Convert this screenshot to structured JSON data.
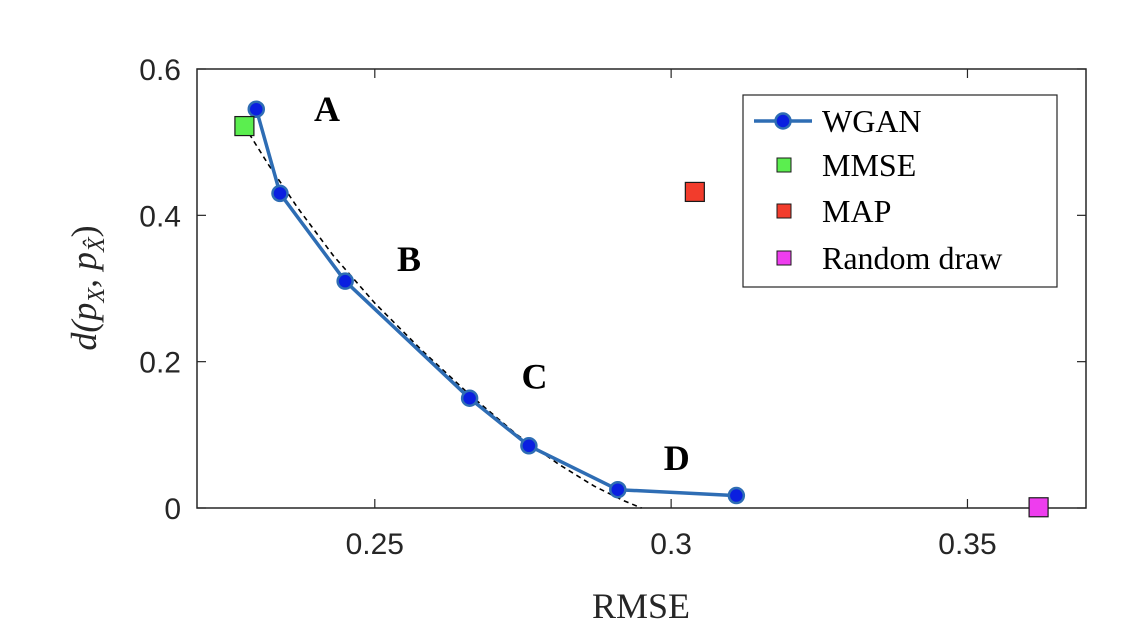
{
  "chart_data": {
    "type": "scatter",
    "xlabel": "RMSE",
    "ylabel": "d(p_X, p_X̂)",
    "xlim": [
      0.22,
      0.37
    ],
    "ylim": [
      0,
      0.6
    ],
    "xticks": [
      0.25,
      0.3,
      0.35
    ],
    "xtick_labels": [
      "0.25",
      "0.3",
      "0.35"
    ],
    "yticks": [
      0,
      0.2,
      0.4,
      0.6
    ],
    "ytick_labels": [
      "0",
      "0.2",
      "0.4",
      "0.6"
    ],
    "grid": false,
    "legend_position": "top-right",
    "series": [
      {
        "name": "WGAN",
        "style": "line-marker",
        "color": "#2e6db4",
        "marker_fill": "#0a1fe0",
        "points": [
          [
            0.23,
            0.545
          ],
          [
            0.234,
            0.43
          ],
          [
            0.245,
            0.31
          ],
          [
            0.266,
            0.15
          ],
          [
            0.276,
            0.085
          ],
          [
            0.291,
            0.025
          ],
          [
            0.311,
            0.017
          ]
        ]
      },
      {
        "name": "MMSE",
        "style": "marker",
        "color": "#5bee4f",
        "points": [
          [
            0.228,
            0.522
          ]
        ]
      },
      {
        "name": "MAP",
        "style": "marker",
        "color": "#f23c2c",
        "points": [
          [
            0.304,
            0.432
          ]
        ]
      },
      {
        "name": "Random draw",
        "style": "marker",
        "color": "#ee3dee",
        "points": [
          [
            0.362,
            0.001
          ]
        ]
      }
    ],
    "dashed_curve": {
      "color": "#000000",
      "points": [
        [
          0.228,
          0.522
        ],
        [
          0.232,
          0.47
        ],
        [
          0.237,
          0.41
        ],
        [
          0.243,
          0.345
        ],
        [
          0.25,
          0.28
        ],
        [
          0.258,
          0.215
        ],
        [
          0.266,
          0.155
        ],
        [
          0.274,
          0.1
        ],
        [
          0.281,
          0.06
        ],
        [
          0.287,
          0.03
        ],
        [
          0.292,
          0.01
        ],
        [
          0.295,
          0.0
        ]
      ]
    },
    "annotations": [
      {
        "text": "A",
        "x": 0.233,
        "y": 0.545
      },
      {
        "text": "B",
        "x": 0.247,
        "y": 0.34
      },
      {
        "text": "C",
        "x": 0.268,
        "y": 0.18
      },
      {
        "text": "D",
        "x": 0.292,
        "y": 0.068
      }
    ]
  }
}
